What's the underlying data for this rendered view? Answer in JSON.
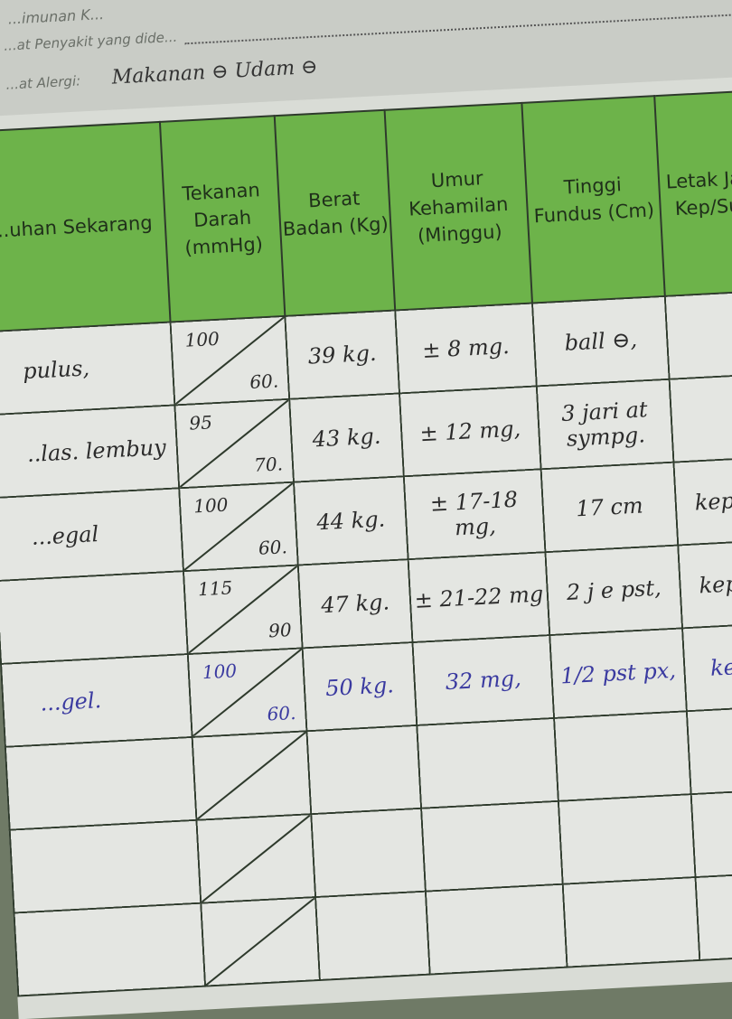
{
  "form": {
    "line1_label": "...imunan K...",
    "line2_label": "...at Penyakit yang dide...",
    "allergy_label": "...at Alergi:",
    "allergy_value": "Makanan ⊖ Udam ⊖"
  },
  "table": {
    "headers": [
      "...uhan Sekarang",
      "Tekanan Darah (mmHg)",
      "Berat Badan (Kg)",
      "Umur Kehamilan (Minggu)",
      "Tinggi Fundus (Cm)",
      "Letak Jan... Kep/Su/..."
    ],
    "rows": [
      {
        "keluhan": "pulus,",
        "systolic": "100",
        "diastolic": "60.",
        "berat": "39 kg.",
        "umur": "± 8 mg.",
        "fundus": "ball ⊖,",
        "letak": "",
        "ink": "black"
      },
      {
        "keluhan": "..las. lembuy",
        "systolic": "95",
        "diastolic": "70.",
        "berat": "43 kg.",
        "umur": "± 12 mg,",
        "fundus": "3 jari at sympg.",
        "letak": "",
        "ink": "black"
      },
      {
        "keluhan": "...egal",
        "systolic": "100",
        "diastolic": "60.",
        "berat": "44 kg.",
        "umur": "± 17-18 mg,",
        "fundus": "17 cm",
        "letak": "kep b...",
        "ink": "black"
      },
      {
        "keluhan": "",
        "systolic": "115",
        "diastolic": "90",
        "berat": "47 kg.",
        "umur": "± 21-22 mg",
        "fundus": "2 j e pst,",
        "letak": "kep b...",
        "ink": "black"
      },
      {
        "keluhan": "...gel.",
        "systolic": "100",
        "diastolic": "60.",
        "berat": "50 kg.",
        "umur": "32 mg,",
        "fundus": "1/2 pst px,",
        "letak": "kep ...",
        "ink": "blue"
      },
      {
        "keluhan": "",
        "systolic": "",
        "diastolic": "",
        "berat": "",
        "umur": "",
        "fundus": "",
        "letak": "",
        "ink": "black"
      },
      {
        "keluhan": "",
        "systolic": "",
        "diastolic": "",
        "berat": "",
        "umur": "",
        "fundus": "",
        "letak": "",
        "ink": "black"
      },
      {
        "keluhan": "",
        "systolic": "",
        "diastolic": "",
        "berat": "",
        "umur": "",
        "fundus": "",
        "letak": "",
        "ink": "black"
      }
    ]
  },
  "colors": {
    "header_green": "#6db34a",
    "paper": "#e4e6e2",
    "blue_ink": "#3a3aa0"
  }
}
